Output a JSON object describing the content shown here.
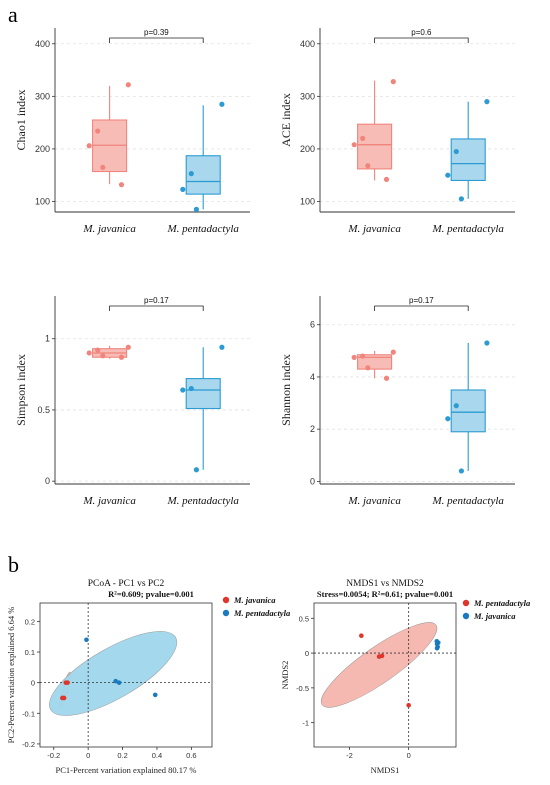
{
  "panel_labels": [
    "a",
    "b"
  ],
  "chart_data": [
    {
      "type": "box",
      "ylabel": "Chao1 index",
      "categories": [
        "M. javanica",
        "M. pentadactyla"
      ],
      "yticks": [
        100,
        200,
        300,
        400
      ],
      "ylim": [
        80,
        430
      ],
      "pvalue_label": "p=0.39",
      "groups": [
        {
          "name": "M. javanica",
          "color": "#f0857d",
          "fill": "#f7bcb6",
          "q1": 157,
          "median": 207,
          "q3": 255,
          "whisker_low": 133,
          "whisker_high": 320,
          "points": [
            322,
            234,
            206,
            165,
            132
          ]
        },
        {
          "name": "M. pentadactyla",
          "color": "#2b9bd1",
          "fill": "#a9d8ee",
          "q1": 114,
          "median": 138,
          "q3": 187,
          "whisker_low": 85,
          "whisker_high": 283,
          "points": [
            285,
            153,
            123,
            85
          ]
        }
      ]
    },
    {
      "type": "box",
      "ylabel": "ACE index",
      "categories": [
        "M. javanica",
        "M. pentadactyla"
      ],
      "yticks": [
        100,
        200,
        300,
        400
      ],
      "ylim": [
        80,
        430
      ],
      "pvalue_label": "p=0.6",
      "groups": [
        {
          "name": "M. javanica",
          "color": "#f0857d",
          "fill": "#f7bcb6",
          "q1": 162,
          "median": 208,
          "q3": 247,
          "whisker_low": 140,
          "whisker_high": 330,
          "points": [
            328,
            220,
            208,
            168,
            142
          ]
        },
        {
          "name": "M. pentadactyla",
          "color": "#2b9bd1",
          "fill": "#a9d8ee",
          "q1": 140,
          "median": 172,
          "q3": 219,
          "whisker_low": 105,
          "whisker_high": 290,
          "points": [
            290,
            195,
            150,
            105
          ]
        }
      ]
    },
    {
      "type": "box",
      "ylabel": "Simpson index",
      "categories": [
        "M. javanica",
        "M. pentadactyla"
      ],
      "yticks": [
        0,
        0.5,
        1
      ],
      "ytick_labels": [
        "0",
        "0.5",
        "1"
      ],
      "ylim": [
        -0.02,
        1.3
      ],
      "pvalue_label": "p=0.17",
      "groups": [
        {
          "name": "M. javanica",
          "color": "#f0857d",
          "fill": "#f7bcb6",
          "q1": 0.87,
          "median": 0.9,
          "q3": 0.93,
          "whisker_low": 0.86,
          "whisker_high": 0.95,
          "points": [
            0.94,
            0.92,
            0.9,
            0.88,
            0.87
          ]
        },
        {
          "name": "M. pentadactyla",
          "color": "#2b9bd1",
          "fill": "#a9d8ee",
          "q1": 0.51,
          "median": 0.64,
          "q3": 0.72,
          "whisker_low": 0.08,
          "whisker_high": 0.94,
          "points": [
            0.94,
            0.65,
            0.64,
            0.08
          ]
        }
      ]
    },
    {
      "type": "box",
      "ylabel": "Shannon index",
      "categories": [
        "M. javanica",
        "M. pentadactyla"
      ],
      "yticks": [
        0,
        2,
        4,
        6
      ],
      "ylim": [
        -0.1,
        7.1
      ],
      "pvalue_label": "p=0.17",
      "groups": [
        {
          "name": "M. javanica",
          "color": "#f0857d",
          "fill": "#f7bcb6",
          "q1": 4.3,
          "median": 4.75,
          "q3": 4.85,
          "whisker_low": 3.95,
          "whisker_high": 5.0,
          "points": [
            4.95,
            4.8,
            4.75,
            4.35,
            3.95
          ]
        },
        {
          "name": "M. pentadactyla",
          "color": "#2b9bd1",
          "fill": "#a9d8ee",
          "q1": 1.9,
          "median": 2.65,
          "q3": 3.5,
          "whisker_low": 0.4,
          "whisker_high": 5.3,
          "points": [
            5.3,
            2.9,
            2.4,
            0.4
          ]
        }
      ]
    },
    {
      "type": "scatter",
      "title": "PCoA - PC1 vs PC2",
      "subtitle": "R²=0.609; pvalue=0.001",
      "xlabel": "PC1-Percent variation explained 80.17 %",
      "ylabel": "PC2-Percent variation explained 6.64 %",
      "xlim": [
        -0.28,
        0.72
      ],
      "ylim": [
        -0.21,
        0.26
      ],
      "xticks": [
        -0.2,
        0,
        0.2,
        0.4,
        0.6
      ],
      "xtick_labels": [
        "-0.2",
        "0",
        "0.2",
        "0.4",
        "0.6"
      ],
      "yticks": [
        -0.2,
        -0.1,
        0,
        0.1,
        0.2
      ],
      "ytick_labels": [
        "-0.2",
        "-0.1",
        "0",
        "0.1",
        "0.2"
      ],
      "legend": [
        "M. javanica",
        "M. pentadactyla"
      ],
      "series": [
        {
          "name": "M. javanica",
          "color": "#e0352a",
          "ellipse_fill": "#f5b5ae",
          "points": [
            [
              -0.14,
              -0.05
            ],
            [
              -0.13,
              0.0
            ],
            [
              -0.12,
              0.0
            ],
            [
              -0.15,
              -0.05
            ]
          ],
          "ellipse": {
            "cx": -0.135,
            "cy": -0.025,
            "rx": 0.11,
            "ry": 0.016,
            "angle": -75
          }
        },
        {
          "name": "M. pentadactyla",
          "color": "#1a7ac0",
          "ellipse_fill": "#9fd6ec",
          "points": [
            [
              -0.01,
              0.14
            ],
            [
              0.16,
              0.005
            ],
            [
              0.18,
              0.0
            ],
            [
              0.39,
              -0.04
            ]
          ],
          "ellipse": {
            "cx": 0.145,
            "cy": 0.03,
            "rx": 0.42,
            "ry": 0.145,
            "angle": -30
          }
        }
      ]
    },
    {
      "type": "scatter",
      "title": "NMDS1 vs NMDS2",
      "subtitle": "Stress=0.0054; R²=0.61; pvalue=0.001",
      "xlabel": "NMDS1",
      "ylabel": "NMDS2",
      "xlim": [
        -3.2,
        1.6
      ],
      "ylim": [
        -1.35,
        0.72
      ],
      "xticks": [
        -2,
        0
      ],
      "xtick_labels": [
        "-2",
        "0"
      ],
      "yticks": [
        -1,
        -0.5,
        0,
        0.5
      ],
      "ytick_labels": [
        "-1",
        "-0.5",
        "0",
        "0.5"
      ],
      "legend": [
        "M. pentadactyla",
        "M. javanica"
      ],
      "series": [
        {
          "name": "M. pentadactyla",
          "color": "#e0352a",
          "ellipse_fill": "#f5b5ae",
          "points": [
            [
              -1.6,
              0.25
            ],
            [
              -1.0,
              -0.05
            ],
            [
              -0.9,
              -0.04
            ],
            [
              0.0,
              -0.75
            ]
          ],
          "ellipse": {
            "cx": -1.0,
            "cy": -0.17,
            "rx": 2.35,
            "ry": 0.6,
            "angle": -35
          }
        },
        {
          "name": "M. javanica",
          "color": "#1a7ac0",
          "ellipse_fill": "#9fd6ec",
          "points": [
            [
              0.95,
              0.17
            ],
            [
              0.96,
              0.13
            ],
            [
              0.98,
              0.09
            ],
            [
              0.96,
              0.07
            ],
            [
              1.0,
              0.15
            ]
          ],
          "ellipse": null
        }
      ]
    }
  ]
}
